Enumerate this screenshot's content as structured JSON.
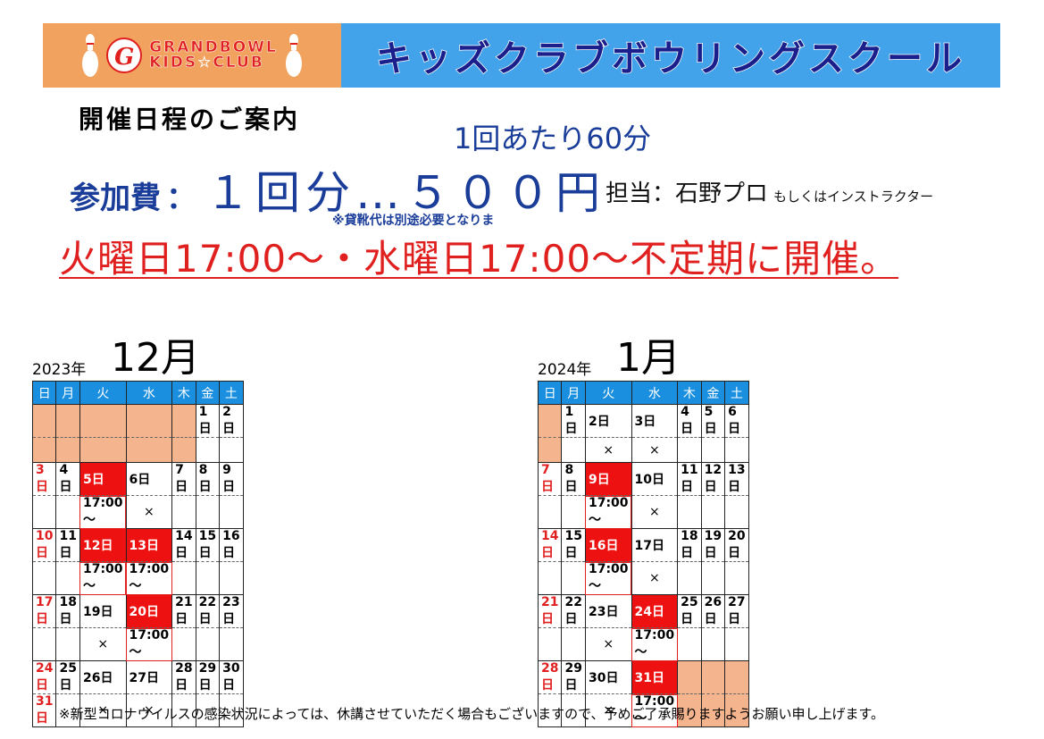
{
  "banner": {
    "logo_line1": "GRANDBOWL",
    "logo_line2": "KIDS☆CLUB",
    "logo_mark": "G",
    "title": "キッズクラブボウリングスクール",
    "logo_color": "#f0a25e",
    "title_color": "#42a2ea"
  },
  "info": {
    "heading": "開催日程のご案内",
    "duration": "1回あたり60分",
    "fee_label": "参加費",
    "fee_colon": "：",
    "fee_value": "１回分…５００円",
    "staff": "担当：石野プロ",
    "staff_sub": "もしくはインストラクター",
    "note": "※貸靴代は別途必要となりま",
    "schedule": "火曜日17:00～・水曜日17:00～不定期に開催。"
  },
  "weekdays": [
    "日",
    "月",
    "火",
    "水",
    "木",
    "金",
    "土"
  ],
  "calendars": [
    {
      "year": "2023年",
      "month": "12月",
      "weeks": [
        {
          "dates": [
            "",
            "",
            "",
            "",
            "",
            "1日",
            "2日"
          ],
          "info": [
            "",
            "",
            "",
            "",
            "",
            "",
            ""
          ]
        },
        {
          "dates": [
            "3日",
            "4日",
            "5日",
            "6日",
            "7日",
            "8日",
            "9日"
          ],
          "info": [
            "",
            "",
            "17:00～",
            "×",
            "",
            "",
            ""
          ]
        },
        {
          "dates": [
            "10日",
            "11日",
            "12日",
            "13日",
            "14日",
            "15日",
            "16日"
          ],
          "info": [
            "",
            "",
            "17:00～",
            "17:00～",
            "",
            "",
            ""
          ]
        },
        {
          "dates": [
            "17日",
            "18日",
            "19日",
            "20日",
            "21日",
            "22日",
            "23日"
          ],
          "info": [
            "",
            "",
            "×",
            "17:00～",
            "",
            "",
            ""
          ]
        },
        {
          "dates": [
            "24日",
            "25日",
            "26日",
            "27日",
            "28日",
            "29日",
            "30日"
          ],
          "info": [
            "31日",
            "",
            "×",
            "×",
            "",
            "",
            ""
          ]
        }
      ]
    },
    {
      "year": "2024年",
      "month": "1月",
      "weeks": [
        {
          "dates": [
            "",
            "1日",
            "2日",
            "3日",
            "4日",
            "5日",
            "6日"
          ],
          "info": [
            "",
            "",
            "×",
            "×",
            "",
            "",
            ""
          ]
        },
        {
          "dates": [
            "7日",
            "8日",
            "9日",
            "10日",
            "11日",
            "12日",
            "13日"
          ],
          "info": [
            "",
            "",
            "17:00～",
            "×",
            "",
            "",
            ""
          ]
        },
        {
          "dates": [
            "14日",
            "15日",
            "16日",
            "17日",
            "18日",
            "19日",
            "20日"
          ],
          "info": [
            "",
            "",
            "17:00～",
            "×",
            "",
            "",
            ""
          ]
        },
        {
          "dates": [
            "21日",
            "22日",
            "23日",
            "24日",
            "25日",
            "26日",
            "27日"
          ],
          "info": [
            "",
            "",
            "×",
            "17:00～",
            "",
            "",
            ""
          ]
        },
        {
          "dates": [
            "28日",
            "29日",
            "30日",
            "31日",
            "",
            "",
            ""
          ],
          "info": [
            "",
            "",
            "×",
            "17:00～",
            "",
            "",
            ""
          ]
        }
      ]
    }
  ],
  "footer": "※新型コロナウイルスの感染状況によっては、休講させていただく場合もございますので、予めご了承賜りますようお願い申し上げます。"
}
